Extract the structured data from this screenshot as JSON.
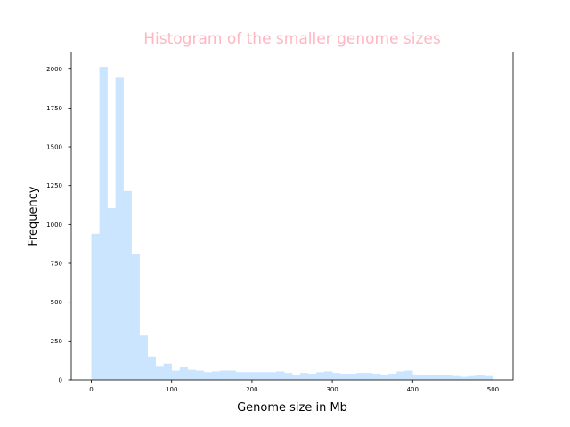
{
  "colors": {
    "bar": "#cce5ff",
    "title": "#ffb6c1",
    "axis": "#000000"
  },
  "chart_data": {
    "type": "bar",
    "title": "Histogram of the smaller genome sizes",
    "xlabel": "Genome size in Mb",
    "ylabel": "Frequency",
    "xlim": [
      -25,
      525
    ],
    "ylim": [
      0,
      2110
    ],
    "bin_width": 10,
    "xticks": [
      0,
      100,
      200,
      300,
      400,
      500
    ],
    "yticks": [
      0,
      250,
      500,
      750,
      1000,
      1250,
      1500,
      1750,
      2000
    ],
    "x": [
      0,
      10,
      20,
      30,
      40,
      50,
      60,
      70,
      80,
      90,
      100,
      110,
      120,
      130,
      140,
      150,
      160,
      170,
      180,
      190,
      200,
      210,
      220,
      230,
      240,
      250,
      260,
      270,
      280,
      290,
      300,
      310,
      320,
      330,
      340,
      350,
      360,
      370,
      380,
      390,
      400,
      410,
      420,
      430,
      440,
      450,
      460,
      470,
      480,
      490
    ],
    "values": [
      940,
      2015,
      1105,
      1945,
      1215,
      810,
      285,
      150,
      90,
      105,
      60,
      80,
      65,
      60,
      50,
      55,
      60,
      60,
      50,
      50,
      50,
      50,
      50,
      55,
      45,
      30,
      45,
      40,
      50,
      55,
      45,
      40,
      40,
      45,
      45,
      40,
      35,
      40,
      55,
      60,
      35,
      30,
      30,
      30,
      30,
      25,
      20,
      25,
      30,
      25
    ],
    "grid": false,
    "legend": "none"
  }
}
